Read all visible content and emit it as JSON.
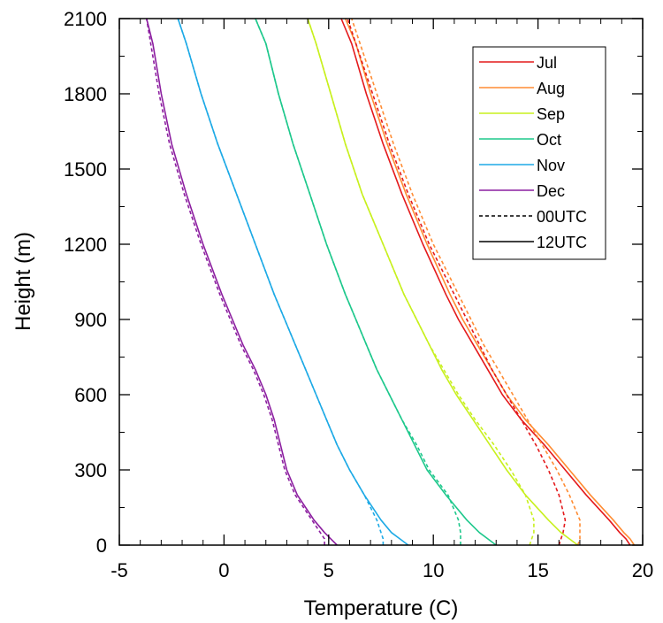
{
  "chart_data": {
    "type": "line",
    "title": "",
    "xlabel": "Temperature (C)",
    "ylabel": "Height (m)",
    "xlim": [
      -5,
      20
    ],
    "ylim": [
      0,
      2100
    ],
    "xticks": [
      -5,
      0,
      5,
      10,
      15,
      20
    ],
    "yticks": [
      0,
      300,
      600,
      900,
      1200,
      1500,
      1800,
      2100
    ],
    "grid": false,
    "legend_position": "top-right",
    "legend": [
      {
        "label": "Jul",
        "color": "#e41a1c",
        "dash": "solid"
      },
      {
        "label": "Aug",
        "color": "#ff8c33",
        "dash": "solid"
      },
      {
        "label": "Sep",
        "color": "#c8f01e",
        "dash": "solid"
      },
      {
        "label": "Oct",
        "color": "#1ec88c",
        "dash": "solid"
      },
      {
        "label": "Nov",
        "color": "#1eaae6",
        "dash": "solid"
      },
      {
        "label": "Dec",
        "color": "#8c1ea0",
        "dash": "solid"
      },
      {
        "label": "00UTC",
        "color": "#000000",
        "dash": "dashed"
      },
      {
        "label": "12UTC",
        "color": "#000000",
        "dash": "solid"
      }
    ],
    "heights": [
      0,
      25,
      50,
      100,
      200,
      300,
      400,
      500,
      600,
      700,
      800,
      900,
      1000,
      1200,
      1400,
      1600,
      1800,
      2000,
      2100
    ],
    "series": [
      {
        "month": "Jul",
        "time": "12UTC",
        "color": "#e41a1c",
        "dash": "solid",
        "temperature": [
          19.4,
          19.2,
          18.9,
          18.4,
          17.3,
          16.3,
          15.3,
          14.2,
          13.3,
          12.6,
          11.9,
          11.2,
          10.6,
          9.5,
          8.5,
          7.6,
          6.8,
          6.1,
          5.6
        ]
      },
      {
        "month": "Aug",
        "time": "12UTC",
        "color": "#ff8c33",
        "dash": "solid",
        "temperature": [
          19.6,
          19.4,
          19.1,
          18.6,
          17.5,
          16.5,
          15.5,
          14.4,
          13.5,
          12.8,
          12.1,
          11.4,
          10.8,
          9.7,
          8.7,
          7.8,
          7.0,
          6.3,
          5.8
        ]
      },
      {
        "month": "Jul",
        "time": "00UTC",
        "color": "#e41a1c",
        "dash": "dashed",
        "temperature": [
          16.0,
          16.1,
          16.2,
          16.3,
          16.0,
          15.5,
          14.9,
          14.2,
          13.5,
          12.8,
          12.2,
          11.6,
          11.0,
          9.8,
          8.8,
          7.9,
          7.1,
          6.3,
          5.9
        ]
      },
      {
        "month": "Aug",
        "time": "00UTC",
        "color": "#ff8c33",
        "dash": "dashed",
        "temperature": [
          16.9,
          17.0,
          17.0,
          17.0,
          16.5,
          15.9,
          15.2,
          14.5,
          13.8,
          13.1,
          12.4,
          11.8,
          11.2,
          10.0,
          9.0,
          8.1,
          7.3,
          6.5,
          6.1
        ]
      },
      {
        "month": "Sep",
        "time": "12UTC",
        "color": "#c8f01e",
        "dash": "solid",
        "temperature": [
          16.9,
          16.5,
          16.1,
          15.5,
          14.4,
          13.5,
          12.7,
          11.9,
          11.1,
          10.4,
          9.8,
          9.2,
          8.6,
          7.6,
          6.6,
          5.8,
          5.1,
          4.4,
          4.0
        ]
      },
      {
        "month": "Sep",
        "time": "00UTC",
        "color": "#c8f01e",
        "dash": "dashed",
        "temperature": [
          14.6,
          14.7,
          14.8,
          14.8,
          14.4,
          13.7,
          12.9,
          12.0,
          11.2,
          10.5,
          9.8,
          9.2,
          8.6,
          7.6,
          6.6,
          5.8,
          5.1,
          4.4,
          4.0
        ]
      },
      {
        "month": "Oct",
        "time": "12UTC",
        "color": "#1ec88c",
        "dash": "solid",
        "temperature": [
          13.0,
          12.6,
          12.2,
          11.6,
          10.6,
          9.7,
          9.1,
          8.5,
          7.9,
          7.3,
          6.8,
          6.3,
          5.8,
          4.9,
          4.1,
          3.3,
          2.6,
          2.0,
          1.5
        ]
      },
      {
        "month": "Oct",
        "time": "00UTC",
        "color": "#1ec88c",
        "dash": "dashed",
        "temperature": [
          11.3,
          11.3,
          11.3,
          11.2,
          10.7,
          9.8,
          9.2,
          8.5,
          7.9,
          7.3,
          6.8,
          6.3,
          5.8,
          4.9,
          4.1,
          3.3,
          2.6,
          2.0,
          1.5
        ]
      },
      {
        "month": "Nov",
        "time": "12UTC",
        "color": "#1eaae6",
        "dash": "solid",
        "temperature": [
          8.8,
          8.4,
          8.0,
          7.5,
          6.7,
          6.0,
          5.4,
          4.9,
          4.4,
          3.9,
          3.4,
          2.9,
          2.4,
          1.5,
          0.6,
          -0.3,
          -1.1,
          -1.8,
          -2.2
        ]
      },
      {
        "month": "Nov",
        "time": "00UTC",
        "color": "#1eaae6",
        "dash": "dashed",
        "temperature": [
          7.6,
          7.6,
          7.5,
          7.3,
          6.7,
          6.0,
          5.4,
          4.9,
          4.4,
          3.9,
          3.4,
          2.9,
          2.4,
          1.5,
          0.6,
          -0.3,
          -1.1,
          -1.8,
          -2.2
        ]
      },
      {
        "month": "Dec",
        "time": "12UTC",
        "color": "#8c1ea0",
        "dash": "solid",
        "temperature": [
          5.4,
          5.1,
          4.8,
          4.3,
          3.5,
          3.0,
          2.7,
          2.4,
          2.0,
          1.5,
          0.9,
          0.4,
          -0.1,
          -1.0,
          -1.8,
          -2.5,
          -3.0,
          -3.4,
          -3.7
        ]
      },
      {
        "month": "Dec",
        "time": "00UTC",
        "color": "#8c1ea0",
        "dash": "dashed",
        "temperature": [
          4.8,
          4.8,
          4.6,
          4.2,
          3.4,
          2.9,
          2.6,
          2.3,
          1.9,
          1.4,
          0.8,
          0.3,
          -0.2,
          -1.1,
          -1.9,
          -2.6,
          -3.1,
          -3.5,
          -3.7
        ]
      }
    ]
  }
}
